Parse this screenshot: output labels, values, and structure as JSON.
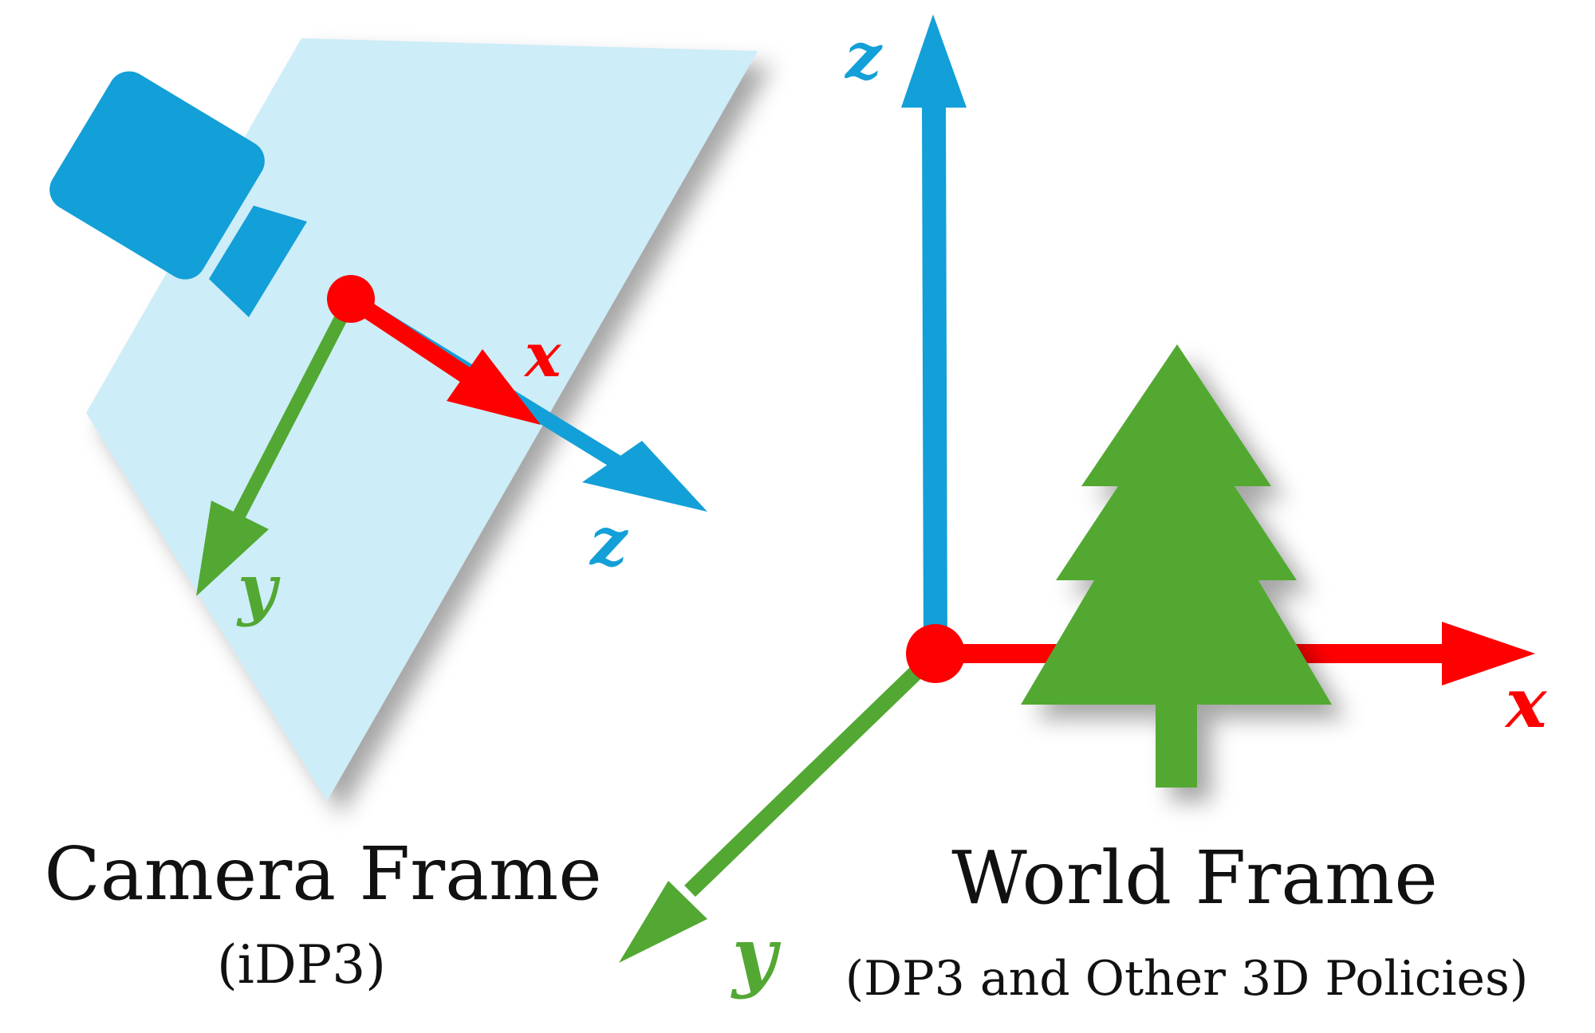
{
  "camera_frame": {
    "title": "Camera Frame",
    "subtitle": "(iDP3)",
    "axes": {
      "x": "x",
      "y": "y",
      "z": "z"
    }
  },
  "world_frame": {
    "title": "World Frame",
    "subtitle": "(DP3 and Other 3D Policies)",
    "axes": {
      "x": "x",
      "y": "y",
      "z": "z"
    }
  },
  "icons": {
    "camera": "camera-icon",
    "tree": "tree-icon",
    "image_plane": "image-plane"
  },
  "colors": {
    "x_axis": "#ff0000",
    "y_axis": "#52a832",
    "z_axis": "#139fd8",
    "camera": "#139fd8",
    "plane": "#cdedf8",
    "tree": "#52a832"
  }
}
